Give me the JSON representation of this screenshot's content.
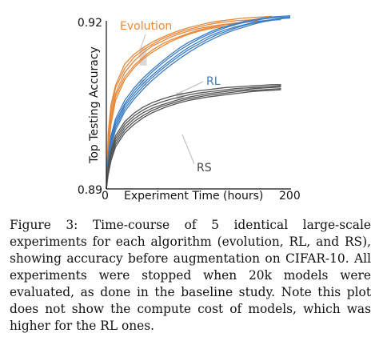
{
  "figure": {
    "caption": "Figure 3: Time-course of 5 identical large-scale experiments for each algorithm (evolution, RL, and RS), showing accuracy before augmentation on CIFAR-10. All experiments were stopped when 20k models were evaluated, as done in the baseline study. Note this plot does not show the compute cost of models, which was higher for the RL ones."
  },
  "colors": {
    "evolution": "#e8883a",
    "rl": "#3b7dc4",
    "rs": "#555555",
    "marker": "#d9d9d9"
  },
  "chart_data": {
    "type": "line",
    "title": "",
    "xlabel": "Experiment Time (hours)",
    "ylabel": "Top Testing Accuracy",
    "xlim": [
      0,
      200
    ],
    "ylim": [
      0.89,
      0.92
    ],
    "x_tick_labels": [
      "0",
      "200"
    ],
    "y_tick_labels": [
      "0.89",
      "0.92"
    ],
    "grid": false,
    "annotations": [
      "Evolution",
      "RL",
      "RS"
    ],
    "series": [
      {
        "group": "Evolution",
        "x": [
          0,
          2,
          5,
          10,
          20,
          30,
          40,
          50,
          60,
          70,
          80,
          90,
          100,
          110,
          120,
          130,
          140,
          150,
          160,
          170,
          180
        ],
        "y": [
          0.89,
          0.9,
          0.905,
          0.9085,
          0.9123,
          0.914,
          0.9152,
          0.9162,
          0.917,
          0.9177,
          0.9183,
          0.9188,
          0.9192,
          0.9196,
          0.9199,
          0.9201,
          0.9203,
          0.9205,
          0.9206,
          0.9207,
          0.9208
        ]
      },
      {
        "group": "Evolution",
        "x": [
          0,
          2,
          5,
          10,
          20,
          30,
          40,
          50,
          60,
          70,
          80,
          90,
          100,
          110,
          120,
          130,
          140,
          150,
          160,
          170
        ],
        "y": [
          0.89,
          0.899,
          0.904,
          0.908,
          0.9115,
          0.9135,
          0.9148,
          0.9158,
          0.9167,
          0.9174,
          0.918,
          0.9185,
          0.9189,
          0.9193,
          0.9196,
          0.9198,
          0.92,
          0.9201,
          0.9202,
          0.9203
        ]
      },
      {
        "group": "Evolution",
        "x": [
          0,
          2,
          5,
          10,
          20,
          30,
          40,
          50,
          60,
          70,
          80,
          90,
          100,
          110,
          120,
          130,
          140,
          150
        ],
        "y": [
          0.89,
          0.898,
          0.903,
          0.907,
          0.9108,
          0.9128,
          0.9143,
          0.9155,
          0.9163,
          0.9171,
          0.9177,
          0.9182,
          0.9186,
          0.9189,
          0.9192,
          0.9194,
          0.9196,
          0.9197
        ]
      },
      {
        "group": "Evolution",
        "x": [
          0,
          2,
          5,
          10,
          20,
          30,
          40,
          50,
          60,
          70,
          80,
          90,
          100,
          110,
          120,
          130,
          140,
          150,
          160,
          170,
          180,
          190
        ],
        "y": [
          0.89,
          0.8975,
          0.9025,
          0.9065,
          0.91,
          0.912,
          0.9135,
          0.9148,
          0.9158,
          0.9166,
          0.9172,
          0.9178,
          0.9183,
          0.9187,
          0.919,
          0.9193,
          0.9195,
          0.9197,
          0.9199,
          0.92,
          0.9201,
          0.9202
        ]
      },
      {
        "group": "Evolution",
        "x": [
          0,
          2,
          5,
          10,
          20,
          30,
          40,
          50,
          60,
          70,
          80,
          90,
          100,
          110,
          120,
          130,
          140
        ],
        "y": [
          0.89,
          0.8965,
          0.9015,
          0.9058,
          0.9095,
          0.9116,
          0.9132,
          0.9144,
          0.9154,
          0.9163,
          0.917,
          0.9176,
          0.9181,
          0.9185,
          0.9188,
          0.919,
          0.9192
        ]
      },
      {
        "group": "RL",
        "x": [
          0,
          2,
          5,
          10,
          20,
          30,
          40,
          50,
          60,
          70,
          80,
          90,
          100,
          110,
          120,
          130,
          140,
          150,
          160,
          170,
          180,
          190,
          200
        ],
        "y": [
          0.89,
          0.896,
          0.8995,
          0.9025,
          0.9058,
          0.908,
          0.9098,
          0.9113,
          0.9127,
          0.914,
          0.9152,
          0.9162,
          0.917,
          0.9178,
          0.9185,
          0.919,
          0.9195,
          0.9199,
          0.9202,
          0.9205,
          0.9207,
          0.9208,
          0.9209
        ]
      },
      {
        "group": "RL",
        "x": [
          0,
          2,
          5,
          10,
          20,
          30,
          40,
          50,
          60,
          70,
          80,
          90,
          100,
          110,
          120,
          130,
          140,
          150,
          160,
          170,
          180,
          190,
          200
        ],
        "y": [
          0.89,
          0.8955,
          0.899,
          0.902,
          0.9052,
          0.9075,
          0.9093,
          0.9109,
          0.9123,
          0.9136,
          0.9148,
          0.9158,
          0.9167,
          0.9175,
          0.9182,
          0.9188,
          0.9193,
          0.9197,
          0.92,
          0.9203,
          0.9205,
          0.9206,
          0.9207
        ]
      },
      {
        "group": "RL",
        "x": [
          0,
          2,
          5,
          10,
          20,
          30,
          40,
          50,
          60,
          70,
          80,
          90,
          100,
          110,
          120,
          130,
          140,
          150,
          160,
          170,
          180,
          190,
          200
        ],
        "y": [
          0.89,
          0.895,
          0.8985,
          0.9015,
          0.9048,
          0.907,
          0.9088,
          0.9103,
          0.9117,
          0.913,
          0.9142,
          0.9153,
          0.9162,
          0.9171,
          0.9178,
          0.9184,
          0.9189,
          0.9193,
          0.9197,
          0.92,
          0.9202,
          0.9204,
          0.9205
        ]
      },
      {
        "group": "RL",
        "x": [
          0,
          2,
          5,
          10,
          20,
          30,
          40,
          50,
          60,
          70,
          80,
          90,
          100,
          110,
          120,
          130,
          140,
          150,
          160,
          170,
          180,
          190,
          200
        ],
        "y": [
          0.89,
          0.8945,
          0.898,
          0.901,
          0.9043,
          0.9065,
          0.9083,
          0.9099,
          0.9113,
          0.9126,
          0.9138,
          0.9149,
          0.9158,
          0.9167,
          0.9175,
          0.9181,
          0.9187,
          0.9192,
          0.9196,
          0.9199,
          0.9202,
          0.9204,
          0.9206
        ]
      },
      {
        "group": "RL",
        "x": [
          0,
          2,
          5,
          10,
          20,
          30,
          40,
          50,
          60,
          70,
          80,
          90,
          100,
          110,
          120,
          130,
          140,
          150,
          160,
          170,
          180,
          190
        ],
        "y": [
          0.89,
          0.894,
          0.8975,
          0.9005,
          0.9038,
          0.906,
          0.9078,
          0.9094,
          0.9108,
          0.9121,
          0.9133,
          0.9144,
          0.9154,
          0.9163,
          0.9171,
          0.9178,
          0.9184,
          0.9189,
          0.9194,
          0.9198,
          0.9201,
          0.9203
        ]
      },
      {
        "group": "RS",
        "x": [
          0,
          2,
          5,
          10,
          20,
          30,
          40,
          50,
          60,
          70,
          80,
          90,
          100,
          110,
          120,
          130,
          140,
          150,
          160,
          170,
          180,
          190
        ],
        "y": [
          0.89,
          0.8945,
          0.897,
          0.8995,
          0.902,
          0.9035,
          0.9046,
          0.9054,
          0.906,
          0.9065,
          0.9069,
          0.9072,
          0.9075,
          0.9077,
          0.9079,
          0.9081,
          0.9082,
          0.9083,
          0.9084,
          0.9085,
          0.9086,
          0.9086
        ]
      },
      {
        "group": "RS",
        "x": [
          0,
          2,
          5,
          10,
          20,
          30,
          40,
          50,
          60,
          70,
          80,
          90,
          100,
          110,
          120,
          130,
          140,
          150,
          160,
          170,
          180,
          190
        ],
        "y": [
          0.89,
          0.894,
          0.8965,
          0.899,
          0.9015,
          0.903,
          0.9041,
          0.9049,
          0.9055,
          0.906,
          0.9064,
          0.9068,
          0.9071,
          0.9073,
          0.9075,
          0.9077,
          0.9079,
          0.908,
          0.9081,
          0.9082,
          0.9083,
          0.9084
        ]
      },
      {
        "group": "RS",
        "x": [
          0,
          2,
          5,
          10,
          20,
          30,
          40,
          50,
          60,
          70,
          80,
          90,
          100,
          110,
          120,
          130,
          140,
          150,
          160,
          170,
          180,
          190
        ],
        "y": [
          0.89,
          0.8935,
          0.896,
          0.8985,
          0.901,
          0.9025,
          0.9036,
          0.9044,
          0.905,
          0.9055,
          0.906,
          0.9064,
          0.9067,
          0.907,
          0.9072,
          0.9074,
          0.9076,
          0.9077,
          0.9079,
          0.908,
          0.9081,
          0.9082
        ]
      },
      {
        "group": "RS",
        "x": [
          0,
          2,
          5,
          10,
          20,
          30,
          40,
          50,
          60,
          70,
          80,
          90,
          100,
          110,
          120,
          130,
          140,
          150,
          160,
          170,
          180,
          190
        ],
        "y": [
          0.89,
          0.893,
          0.8955,
          0.898,
          0.9005,
          0.902,
          0.9031,
          0.904,
          0.9047,
          0.9052,
          0.9057,
          0.9061,
          0.9064,
          0.9067,
          0.9069,
          0.9071,
          0.9073,
          0.9075,
          0.9076,
          0.9077,
          0.9078,
          0.9079
        ]
      },
      {
        "group": "RS",
        "x": [
          0,
          2,
          5,
          10,
          20,
          30,
          40,
          50,
          60,
          70,
          80,
          90,
          100,
          110,
          120,
          130,
          140,
          150,
          160,
          170,
          180,
          190
        ],
        "y": [
          0.89,
          0.8925,
          0.895,
          0.8975,
          0.9,
          0.9015,
          0.9027,
          0.9036,
          0.9043,
          0.9049,
          0.9054,
          0.9058,
          0.9061,
          0.9064,
          0.9066,
          0.9068,
          0.907,
          0.9072,
          0.9074,
          0.9075,
          0.9076,
          0.9077
        ]
      }
    ],
    "markers": [
      {
        "group": "Evolution",
        "x": 40,
        "y_min": 0.912,
        "y_max": 0.9152
      },
      {
        "group": "RL",
        "x": 40,
        "y_min": 0.9084,
        "y_max": 0.9095
      },
      {
        "group": "RS",
        "x": 80,
        "y_min": 0.906,
        "y_max": 0.9072
      }
    ]
  }
}
